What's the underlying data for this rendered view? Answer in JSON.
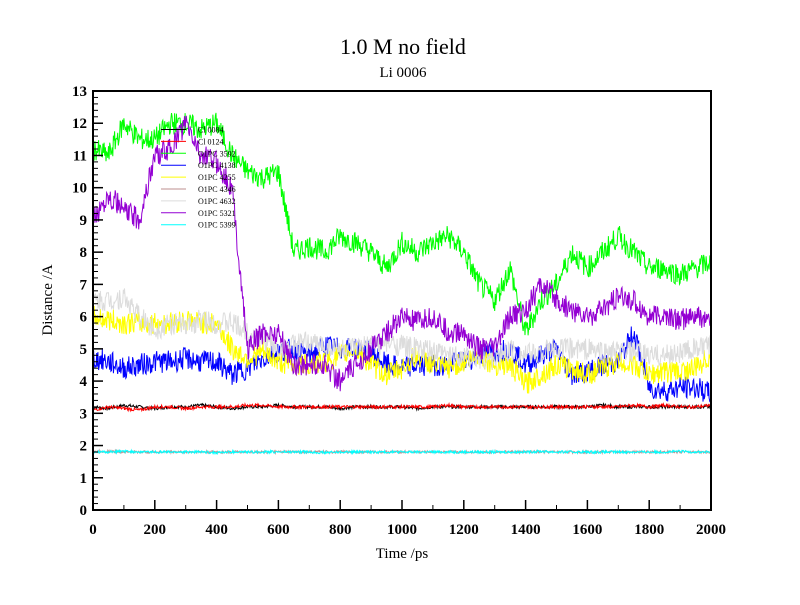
{
  "chart_data": {
    "type": "line",
    "title": "1.0 M no field",
    "subtitle": "Li 0006",
    "xlabel": "Time /ps",
    "ylabel": "Distance /A",
    "xlim": [
      0,
      2000
    ],
    "ylim": [
      0,
      13
    ],
    "xticks": [
      0,
      200,
      400,
      600,
      800,
      1000,
      1200,
      1400,
      1600,
      1800,
      2000
    ],
    "yticks": [
      0,
      1,
      2,
      3,
      4,
      5,
      6,
      7,
      8,
      9,
      10,
      11,
      12,
      13
    ],
    "legend_placement": "top-left",
    "x_step": 50,
    "series": [
      {
        "name": "Cl 0084",
        "color": "#000000",
        "values": [
          3.2,
          3.15,
          3.25,
          3.2,
          3.15,
          3.2,
          3.2,
          3.25,
          3.2,
          3.15,
          3.2,
          3.2,
          3.25,
          3.2,
          3.2,
          3.2,
          3.15,
          3.2,
          3.2,
          3.2,
          3.2,
          3.15,
          3.2,
          3.2,
          3.2,
          3.2,
          3.2,
          3.2,
          3.2,
          3.2,
          3.2,
          3.2,
          3.2,
          3.25,
          3.2,
          3.2,
          3.2,
          3.2,
          3.2,
          3.2,
          3.2
        ]
      },
      {
        "name": "Cl 0124",
        "color": "#ff0000",
        "values": [
          3.1,
          3.2,
          3.15,
          3.1,
          3.2,
          3.2,
          3.15,
          3.2,
          3.2,
          3.2,
          3.25,
          3.25,
          3.2,
          3.2,
          3.2,
          3.2,
          3.2,
          3.2,
          3.2,
          3.2,
          3.2,
          3.2,
          3.2,
          3.25,
          3.2,
          3.2,
          3.2,
          3.2,
          3.2,
          3.2,
          3.2,
          3.2,
          3.2,
          3.2,
          3.2,
          3.25,
          3.2,
          3.25,
          3.2,
          3.2,
          3.25
        ]
      },
      {
        "name": "O1PC 3592",
        "color": "#00ff00",
        "values": [
          11.2,
          11.0,
          12.0,
          11.5,
          11.5,
          12.0,
          12.0,
          11.8,
          12.0,
          11.0,
          10.5,
          10.3,
          10.5,
          8.0,
          8.2,
          8.0,
          8.5,
          8.3,
          8.0,
          7.5,
          8.3,
          8.0,
          8.3,
          8.5,
          8.0,
          7.0,
          6.5,
          7.5,
          5.5,
          6.5,
          7.0,
          8.0,
          7.5,
          8.0,
          8.5,
          8.0,
          7.5,
          7.5,
          7.3,
          7.5,
          7.7
        ]
      },
      {
        "name": "O1PC 4138",
        "color": "#0000ff",
        "values": [
          4.7,
          4.6,
          4.4,
          4.5,
          4.6,
          4.6,
          4.7,
          4.6,
          4.6,
          4.2,
          4.4,
          4.7,
          4.9,
          5.0,
          4.8,
          5.1,
          5.0,
          5.0,
          4.9,
          4.5,
          4.4,
          4.5,
          4.5,
          4.5,
          4.6,
          4.8,
          4.9,
          5.0,
          4.5,
          4.8,
          5.0,
          4.2,
          4.3,
          4.5,
          4.6,
          5.5,
          3.8,
          3.7,
          3.8,
          3.8,
          3.6
        ]
      },
      {
        "name": "O1PC 4255",
        "color": "#ffff00",
        "values": [
          6.0,
          5.9,
          5.8,
          5.8,
          5.8,
          5.8,
          5.9,
          5.8,
          5.8,
          5.0,
          4.7,
          4.9,
          4.6,
          4.5,
          4.5,
          4.6,
          4.8,
          5.0,
          4.5,
          4.2,
          4.4,
          4.8,
          4.5,
          4.4,
          4.6,
          4.8,
          4.5,
          4.5,
          3.9,
          4.2,
          4.5,
          4.4,
          4.2,
          4.4,
          4.6,
          4.5,
          4.2,
          4.3,
          4.3,
          4.4,
          4.8
        ]
      },
      {
        "name": "O1PC 4346",
        "color": "#bc8f8f",
        "values": [
          1.8,
          1.82,
          1.8,
          1.8,
          1.8,
          1.8,
          1.8,
          1.8,
          1.8,
          1.8,
          1.8,
          1.8,
          1.8,
          1.8,
          1.8,
          1.8,
          1.8,
          1.8,
          1.8,
          1.8,
          1.8,
          1.8,
          1.8,
          1.8,
          1.8,
          1.8,
          1.8,
          1.8,
          1.8,
          1.8,
          1.8,
          1.8,
          1.8,
          1.8,
          1.8,
          1.8,
          1.8,
          1.8,
          1.8,
          1.8,
          1.8
        ]
      },
      {
        "name": "O1PC 4632",
        "color": "#dcdcdc",
        "values": [
          6.5,
          6.5,
          6.6,
          6.0,
          5.6,
          5.8,
          5.7,
          5.9,
          5.8,
          5.8,
          5.5,
          5.3,
          5.0,
          5.1,
          5.2,
          5.1,
          5.0,
          5.0,
          5.1,
          5.2,
          5.1,
          5.0,
          4.9,
          4.8,
          4.8,
          4.7,
          4.7,
          5.0,
          4.8,
          4.9,
          5.0,
          5.0,
          5.0,
          4.9,
          4.9,
          4.9,
          4.8,
          4.8,
          4.9,
          5.0,
          5.1
        ]
      },
      {
        "name": "O1PC 5321",
        "color": "#9400d3",
        "values": [
          9.0,
          9.8,
          9.3,
          9.0,
          11.0,
          11.2,
          12.0,
          11.0,
          10.8,
          10.0,
          5.0,
          5.5,
          5.5,
          4.5,
          4.5,
          4.5,
          4.0,
          4.5,
          5.0,
          5.5,
          6.0,
          5.8,
          6.0,
          5.5,
          5.5,
          5.0,
          5.0,
          6.0,
          6.2,
          7.0,
          6.5,
          6.2,
          6.0,
          6.2,
          6.6,
          6.5,
          6.0,
          6.0,
          5.9,
          6.0,
          5.9
        ]
      },
      {
        "name": "O1PC 5399",
        "color": "#00ffff",
        "values": [
          1.8,
          1.8,
          1.82,
          1.8,
          1.8,
          1.8,
          1.8,
          1.8,
          1.78,
          1.8,
          1.8,
          1.8,
          1.8,
          1.8,
          1.8,
          1.78,
          1.8,
          1.8,
          1.8,
          1.8,
          1.8,
          1.8,
          1.8,
          1.8,
          1.8,
          1.8,
          1.8,
          1.8,
          1.8,
          1.82,
          1.8,
          1.8,
          1.8,
          1.8,
          1.8,
          1.8,
          1.8,
          1.8,
          1.82,
          1.8,
          1.8
        ]
      }
    ]
  }
}
